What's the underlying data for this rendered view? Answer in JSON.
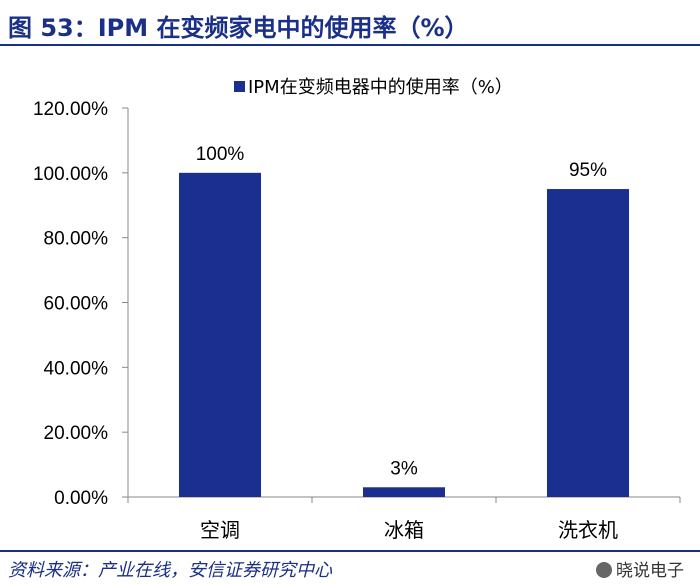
{
  "figure": {
    "title": "图 53：IPM 在变频家电中的使用率（%）",
    "source": "资料来源：产业在线，安信证券研究中心",
    "watermark": "晓说电子"
  },
  "colors": {
    "bar": "#1a2f8f",
    "title": "#1a2f87",
    "axis": "#888888",
    "text": "#000000"
  },
  "chart_data": {
    "type": "bar",
    "categories": [
      "空调",
      "冰箱",
      "洗衣机"
    ],
    "series": [
      {
        "name": "IPM在变频电器中的使用率（%）",
        "values": [
          100,
          3,
          95
        ]
      }
    ],
    "data_labels": [
      "100%",
      "3%",
      "95%"
    ],
    "ylim": [
      0,
      120
    ],
    "yticks": [
      0,
      20,
      40,
      60,
      80,
      100,
      120
    ],
    "ytick_labels": [
      "0.00%",
      "20.00%",
      "40.00%",
      "60.00%",
      "80.00%",
      "100.00%",
      "120.00%"
    ],
    "legend_position": "top",
    "grid": false
  }
}
